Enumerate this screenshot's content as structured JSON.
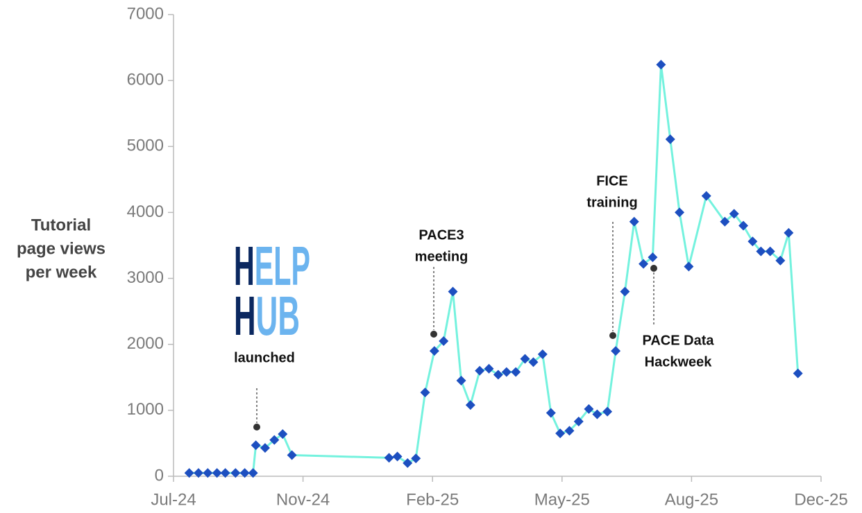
{
  "chart_data": {
    "type": "line",
    "ylabel": [
      "Tutorial",
      "page views",
      "per week"
    ],
    "x": [
      1.7,
      2.7,
      3.7,
      4.7,
      5.6,
      6.7,
      7.7,
      8.6,
      8.9,
      9.9,
      10.9,
      11.8,
      12.8,
      23.3,
      24.2,
      25.3,
      26.2,
      27.2,
      28.2,
      29.2,
      30.2,
      31.1,
      32.1,
      33.1,
      34.1,
      35.1,
      36.0,
      37.0,
      38.0,
      38.9,
      39.9,
      40.8,
      41.8,
      42.8,
      43.8,
      44.9,
      45.8,
      46.9,
      47.8,
      48.8,
      49.8,
      50.8,
      51.8,
      52.7,
      53.7,
      54.7,
      55.7,
      57.6,
      59.6,
      60.6,
      61.6,
      62.6,
      63.5,
      64.5,
      65.6,
      66.5,
      67.5
    ],
    "series": [
      {
        "name": "Tutorial page views per week",
        "color": "#74f2de",
        "marker_color": "#1d4fc0",
        "values": [
          50,
          50,
          50,
          50,
          50,
          50,
          50,
          50,
          470,
          430,
          550,
          640,
          320,
          280,
          300,
          200,
          270,
          1270,
          1900,
          2050,
          2800,
          1450,
          1080,
          1600,
          1630,
          1540,
          1580,
          1580,
          1780,
          1730,
          1850,
          960,
          650,
          690,
          830,
          1020,
          940,
          980,
          1900,
          2800,
          3860,
          3220,
          3320,
          6240,
          5110,
          4000,
          3180,
          4250,
          3860,
          3980,
          3800,
          3560,
          3410,
          3410,
          3270,
          3690,
          1560
        ]
      }
    ],
    "xlim": [
      0,
      70
    ],
    "xticks": [
      {
        "value": 0,
        "label": "Jul-24"
      },
      {
        "value": 14,
        "label": "Nov-24"
      },
      {
        "value": 28,
        "label": "Feb-25"
      },
      {
        "value": 42,
        "label": "May-25"
      },
      {
        "value": 56,
        "label": "Aug-25"
      },
      {
        "value": 70,
        "label": "Dec-25"
      }
    ],
    "ylim": [
      0,
      7000
    ],
    "yticks": [
      0,
      1000,
      2000,
      3000,
      4000,
      5000,
      6000,
      7000
    ],
    "grid": false,
    "logo": [
      [
        "H",
        "ELP"
      ],
      [
        "H",
        "UB"
      ]
    ],
    "annotations": [
      {
        "text": [
          "launched"
        ]
      },
      {
        "text": [
          "PACE3",
          "meeting"
        ]
      },
      {
        "text": [
          "FICE",
          "training"
        ]
      },
      {
        "text": [
          "PACE Data",
          "Hackweek"
        ]
      }
    ]
  }
}
